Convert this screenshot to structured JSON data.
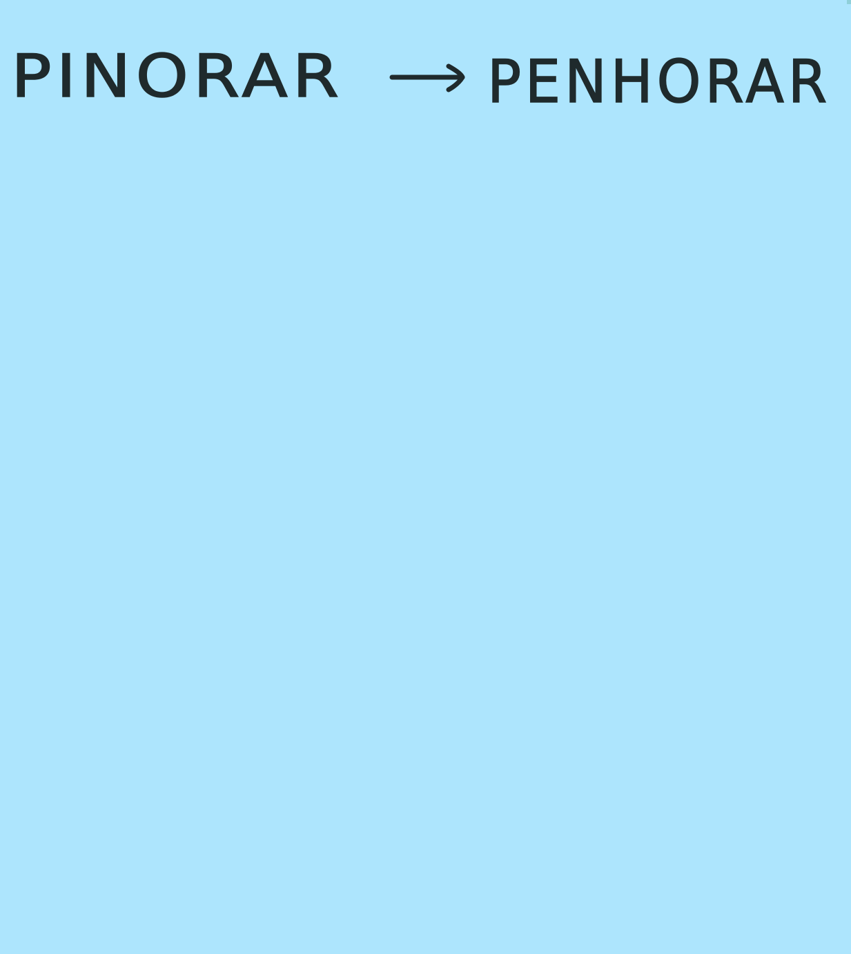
{
  "note": {
    "color": "#ade5fd",
    "ink_color": "#1f2a2c",
    "wrong_word": "PINORAR",
    "correct_word": "PENHORAR",
    "arrow_icon": "right-arrow-icon"
  }
}
